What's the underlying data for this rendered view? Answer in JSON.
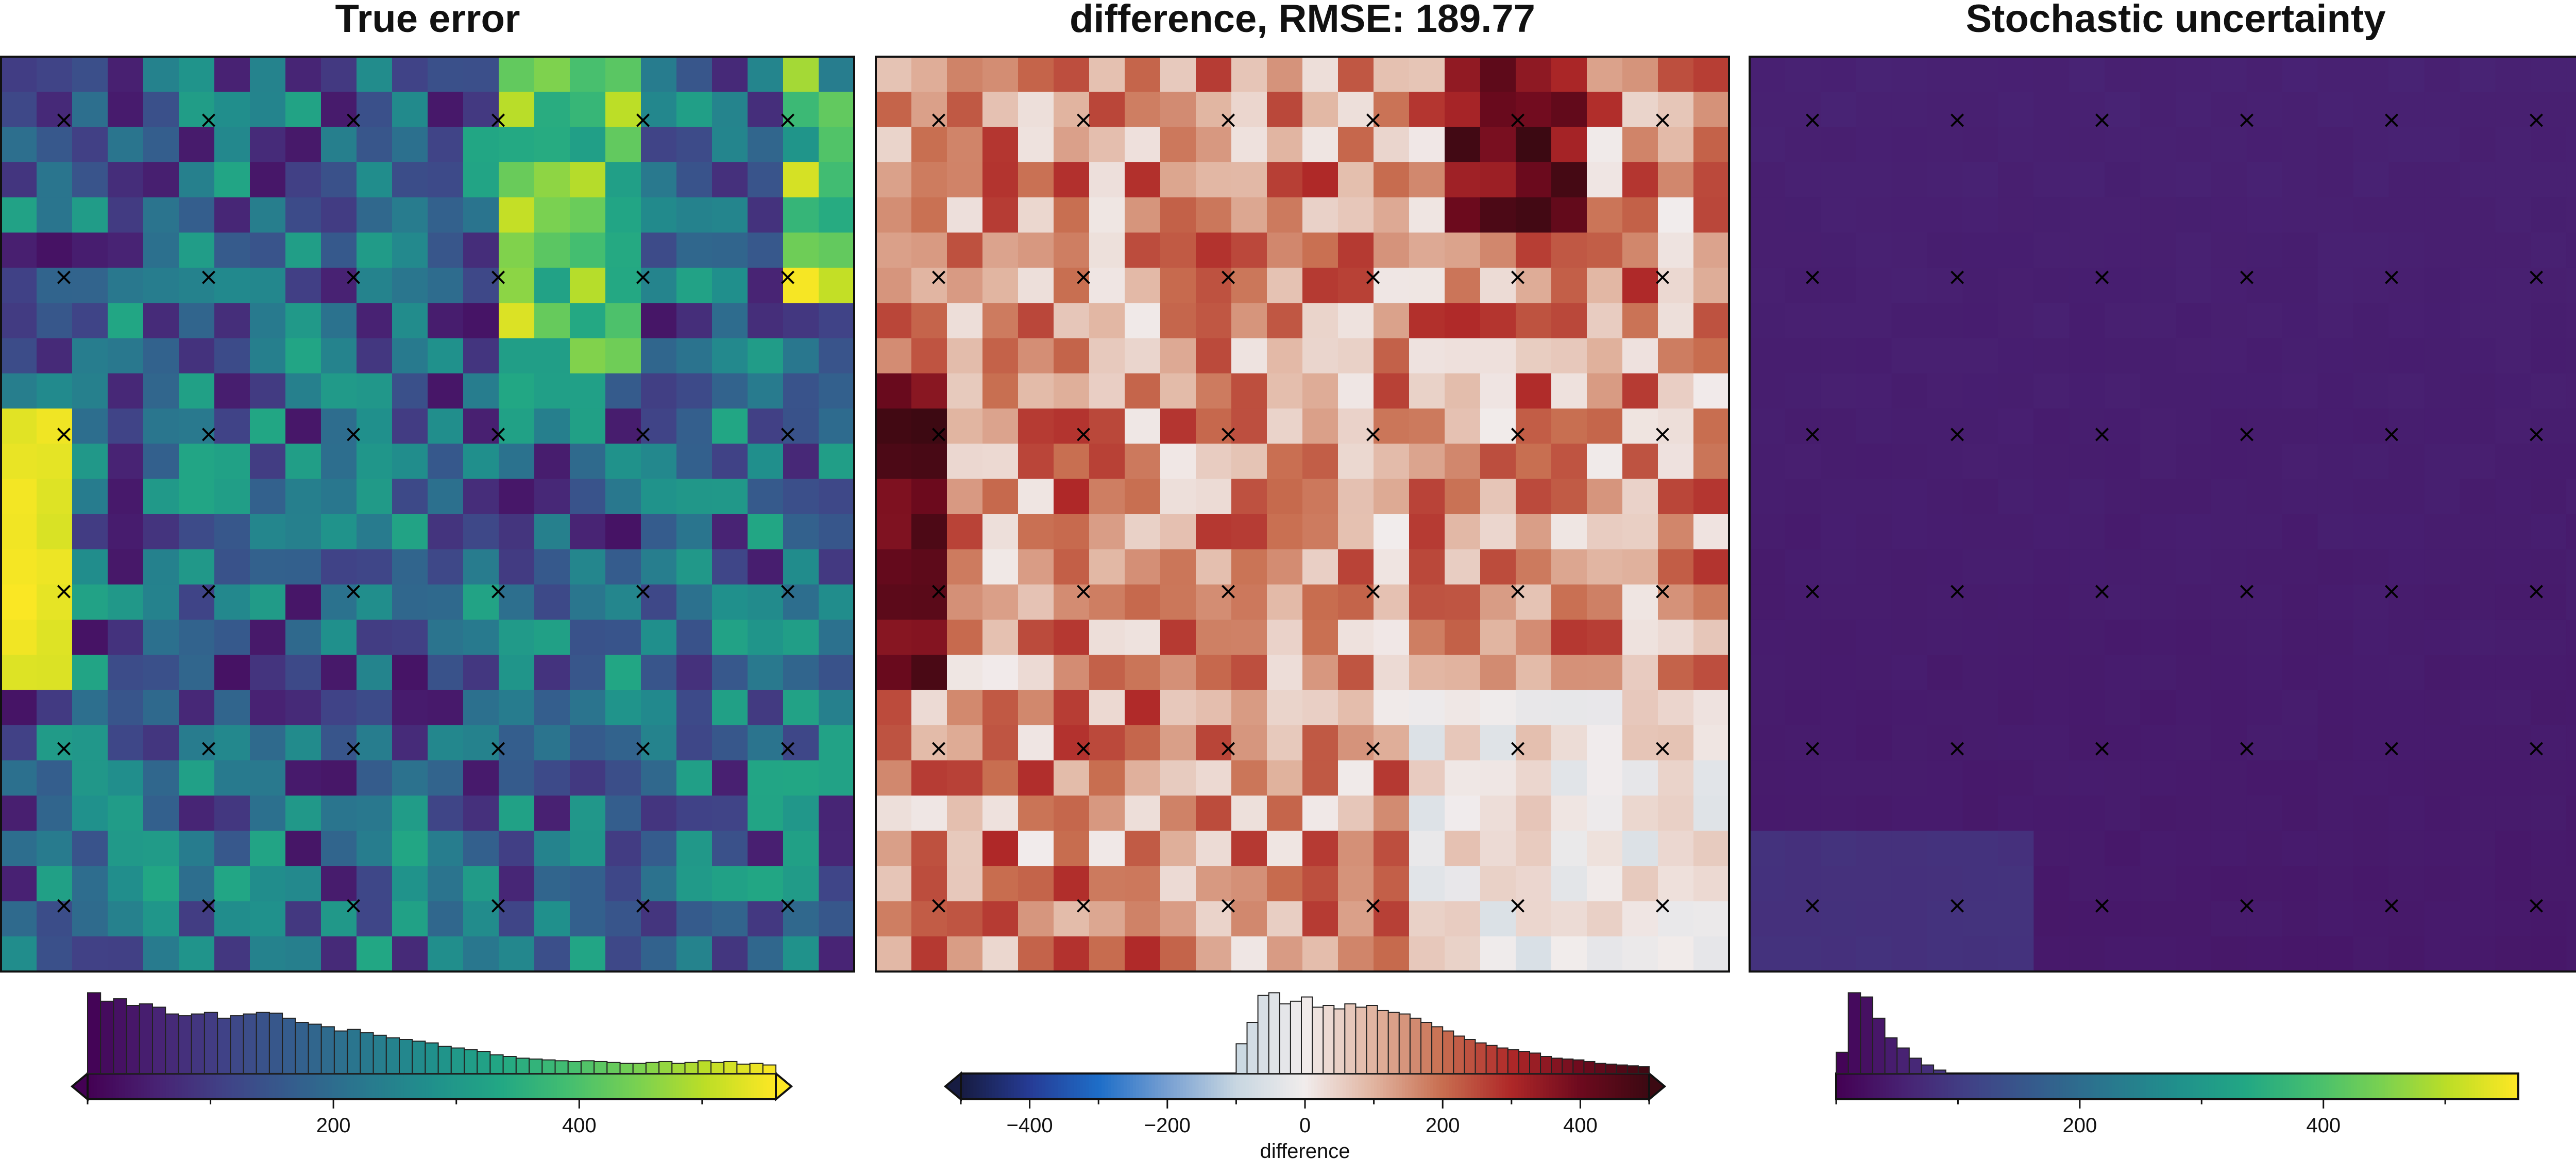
{
  "chart_data": [
    {
      "type": "heatmap",
      "title": "True error",
      "colormap": "viridis",
      "grid": {
        "rows": 26,
        "cols": 24,
        "pattern": "noisy_viridis",
        "seed": 11
      },
      "markers": {
        "symbol": "×",
        "rows": 6,
        "cols": 6,
        "color": "#000000"
      },
      "colorbar": {
        "range": [
          0,
          560
        ],
        "ticks": [
          200,
          400
        ],
        "tick_labels": [
          "200",
          "400"
        ],
        "label": "",
        "extend": "both",
        "histogram": [
          0.95,
          0.85,
          0.88,
          0.8,
          0.82,
          0.78,
          0.7,
          0.68,
          0.7,
          0.72,
          0.65,
          0.68,
          0.7,
          0.72,
          0.71,
          0.65,
          0.6,
          0.58,
          0.55,
          0.5,
          0.52,
          0.48,
          0.45,
          0.42,
          0.4,
          0.38,
          0.36,
          0.32,
          0.3,
          0.28,
          0.26,
          0.22,
          0.2,
          0.18,
          0.17,
          0.16,
          0.15,
          0.14,
          0.15,
          0.14,
          0.13,
          0.12,
          0.12,
          0.13,
          0.14,
          0.12,
          0.13,
          0.15,
          0.13,
          0.14,
          0.11,
          0.12,
          0.1
        ]
      }
    },
    {
      "type": "heatmap",
      "title": "difference, RMSE: 189.77",
      "colormap": "balance",
      "grid": {
        "rows": 26,
        "cols": 24,
        "pattern": "reds",
        "seed": 23
      },
      "markers": {
        "symbol": "×",
        "rows": 6,
        "cols": 6,
        "color": "#000000"
      },
      "colorbar": {
        "range": [
          -500,
          500
        ],
        "ticks": [
          -400,
          -200,
          0,
          200,
          400
        ],
        "tick_labels": [
          "−400",
          "−200",
          "0",
          "200",
          "400"
        ],
        "label": "difference",
        "extend": "both",
        "histogram_range": [
          -100,
          500
        ],
        "histogram": [
          0.35,
          0.6,
          0.92,
          0.95,
          0.82,
          0.85,
          0.9,
          0.78,
          0.8,
          0.76,
          0.82,
          0.78,
          0.8,
          0.74,
          0.72,
          0.7,
          0.65,
          0.6,
          0.55,
          0.5,
          0.44,
          0.4,
          0.36,
          0.33,
          0.3,
          0.28,
          0.26,
          0.24,
          0.2,
          0.18,
          0.17,
          0.16,
          0.14,
          0.12,
          0.11,
          0.1,
          0.09,
          0.08
        ]
      }
    },
    {
      "type": "heatmap",
      "title": "Stochastic uncertainty",
      "colormap": "viridis",
      "grid": {
        "rows": 26,
        "cols": 24,
        "pattern": "smooth_low",
        "seed": 5
      },
      "markers": {
        "symbol": "×",
        "rows": 6,
        "cols": 6,
        "color": "#000000"
      },
      "colorbar": {
        "range": [
          0,
          560
        ],
        "ticks": [
          200,
          400
        ],
        "tick_labels": [
          "200",
          "400"
        ],
        "label": "",
        "extend": "neither",
        "histogram_range": [
          0,
          90
        ],
        "histogram": [
          0.25,
          0.95,
          0.9,
          0.65,
          0.42,
          0.3,
          0.18,
          0.1,
          0.04
        ]
      }
    }
  ]
}
